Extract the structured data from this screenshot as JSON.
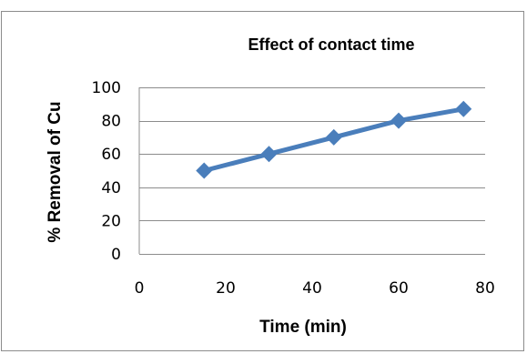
{
  "chart_data": {
    "type": "line",
    "title": "Effect of contact time",
    "xlabel": "Time (min)",
    "ylabel": "% Removal of Cu",
    "x": [
      15,
      30,
      45,
      60,
      75
    ],
    "series": [
      {
        "name": "",
        "values": [
          50,
          60,
          70,
          80,
          87
        ],
        "color": "#4a7ebb",
        "marker": "diamond"
      }
    ],
    "xlim": [
      0,
      80
    ],
    "ylim": [
      0,
      100
    ],
    "xticks": [
      0,
      20,
      40,
      60,
      80
    ],
    "yticks": [
      0,
      20,
      40,
      60,
      80,
      100
    ],
    "grid": "horizontal",
    "legend": "none"
  }
}
